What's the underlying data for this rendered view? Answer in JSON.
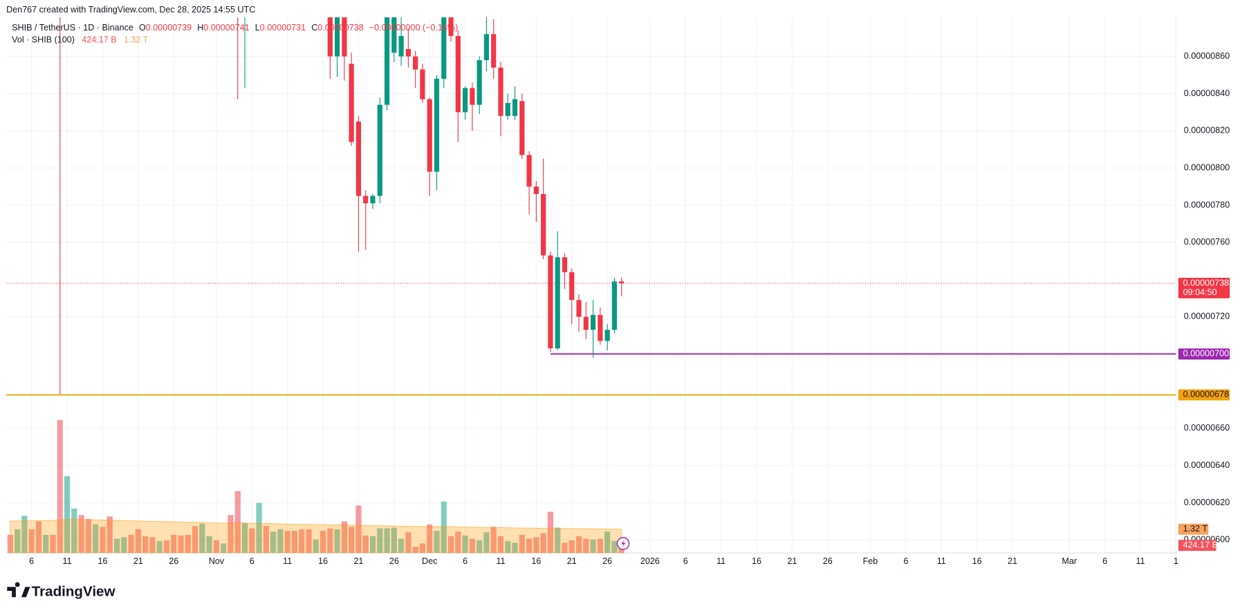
{
  "header": "Den767 created with TradingView.com, Dec 28, 2025 14:55 UTC",
  "brand": "TradingView",
  "legend": {
    "symbol": "SHIB / TetherUS · 1D · Binance",
    "ohlc": [
      {
        "key": "O",
        "value": "0.00000739"
      },
      {
        "key": "H",
        "value": "0.00000741"
      },
      {
        "key": "L",
        "value": "0.00000731"
      },
      {
        "key": "C",
        "value": "0.00000738"
      }
    ],
    "change": "−0.00000000 (−0.14%)",
    "volume": "Vol · SHIB (100)"
  },
  "chart_data": {
    "type": "candlestick",
    "xlim": [
      "2025-10-02",
      "2026-03-16"
    ],
    "xticks": [
      {
        "value": "2025-10-06",
        "label": "6"
      },
      {
        "value": "2025-10-11",
        "label": "11"
      },
      {
        "value": "2025-10-16",
        "label": "16"
      },
      {
        "value": "2025-10-21",
        "label": "21"
      },
      {
        "value": "2025-10-26",
        "label": "26"
      },
      {
        "value": "2025-11-01",
        "label": "Nov"
      },
      {
        "value": "2025-11-06",
        "label": "6"
      },
      {
        "value": "2025-11-11",
        "label": "11"
      },
      {
        "value": "2025-11-16",
        "label": "16"
      },
      {
        "value": "2025-11-21",
        "label": "21"
      },
      {
        "value": "2025-11-26",
        "label": "26"
      },
      {
        "value": "2025-12-01",
        "label": "Dec"
      },
      {
        "value": "2025-12-06",
        "label": "6"
      },
      {
        "value": "2025-12-11",
        "label": "11"
      },
      {
        "value": "2025-12-16",
        "label": "16"
      },
      {
        "value": "2025-12-21",
        "label": "21"
      },
      {
        "value": "2025-12-26",
        "label": "26"
      },
      {
        "value": "2026-01-01",
        "label": "2026"
      },
      {
        "value": "2026-01-06",
        "label": "6"
      },
      {
        "value": "2026-01-11",
        "label": "11"
      },
      {
        "value": "2026-01-16",
        "label": "16"
      },
      {
        "value": "2026-01-21",
        "label": "21"
      },
      {
        "value": "2026-01-26",
        "label": "26"
      },
      {
        "value": "2026-02-01",
        "label": "Feb"
      },
      {
        "value": "2026-02-06",
        "label": "6"
      },
      {
        "value": "2026-02-11",
        "label": "11"
      },
      {
        "value": "2026-02-16",
        "label": "16"
      },
      {
        "value": "2026-02-21",
        "label": "21"
      },
      {
        "value": "2026-03-01",
        "label": "Mar"
      },
      {
        "value": "2026-03-06",
        "label": "6"
      },
      {
        "value": "2026-03-11",
        "label": "11"
      },
      {
        "value": "2026-03-16",
        "label": "1"
      }
    ],
    "ylim": [
      5.93e-06,
      8.81e-06
    ],
    "yticks": [
      {
        "value": 6e-06,
        "label": "0.00000600"
      },
      {
        "value": 6.2e-06,
        "label": "0.00000620"
      },
      {
        "value": 6.4e-06,
        "label": "0.00000640"
      },
      {
        "value": 6.6e-06,
        "label": "0.00000660"
      },
      {
        "value": 7.2e-06,
        "label": "0.00000720"
      },
      {
        "value": 7.6e-06,
        "label": "0.00000760"
      },
      {
        "value": 7.8e-06,
        "label": "0.00000780"
      },
      {
        "value": 8e-06,
        "label": "0.00000800"
      },
      {
        "value": 8.2e-06,
        "label": "0.00000820"
      },
      {
        "value": 8.4e-06,
        "label": "0.00000840"
      },
      {
        "value": 8.6e-06,
        "label": "0.00000860"
      }
    ],
    "grid": true,
    "up_color": "#089981",
    "down_color": "#f23645",
    "candles": {
      "x": [
        "2025-11-04",
        "2025-11-05",
        "2025-11-17",
        "2025-11-18",
        "2025-11-19",
        "2025-11-20",
        "2025-11-21",
        "2025-11-22",
        "2025-11-23",
        "2025-11-24",
        "2025-11-25",
        "2025-11-26",
        "2025-11-27",
        "2025-11-28",
        "2025-11-29",
        "2025-11-30",
        "2025-12-01",
        "2025-12-02",
        "2025-12-03",
        "2025-12-04",
        "2025-12-05",
        "2025-12-06",
        "2025-12-07",
        "2025-12-08",
        "2025-12-09",
        "2025-12-10",
        "2025-12-11",
        "2025-12-12",
        "2025-12-13",
        "2025-12-14",
        "2025-12-15",
        "2025-12-16",
        "2025-12-17",
        "2025-12-18",
        "2025-12-19",
        "2025-12-20",
        "2025-12-21",
        "2025-12-22",
        "2025-12-23",
        "2025-12-24",
        "2025-12-25",
        "2025-12-26",
        "2025-12-27",
        "2025-12-28"
      ],
      "open": [
        8.9e-06,
        8.85e-06,
        8.9e-06,
        8.6e-06,
        8.9e-06,
        8.56e-06,
        8.25e-06,
        7.85e-06,
        7.81e-06,
        7.85e-06,
        8.34e-06,
        8.62e-06,
        8.6e-06,
        8.64e-06,
        8.6e-06,
        8.53e-06,
        8.37e-06,
        7.98e-06,
        8.48e-06,
        8.82e-06,
        8.71e-06,
        8.3e-06,
        8.43e-06,
        8.34e-06,
        8.58e-06,
        8.72e-06,
        8.54e-06,
        8.28e-06,
        8.28e-06,
        8.36e-06,
        8.07e-06,
        7.9e-06,
        7.86e-06,
        7.53e-06,
        7.03e-06,
        7.52e-06,
        7.44e-06,
        7.29e-06,
        7.2e-06,
        7.13e-06,
        7.21e-06,
        7.07e-06,
        7.13e-06,
        7.39e-06
      ],
      "high": [
        9e-06,
        9e-06,
        9e-06,
        9e-06,
        8.95e-06,
        8.62e-06,
        8.28e-06,
        7.88e-06,
        7.86e-06,
        8.38e-06,
        8.9e-06,
        8.9e-06,
        8.85e-06,
        8.75e-06,
        8.63e-06,
        8.56e-06,
        8.38e-06,
        8.5e-06,
        8.9e-06,
        8.85e-06,
        8.74e-06,
        8.44e-06,
        8.46e-06,
        8.6e-06,
        8.82e-06,
        8.8e-06,
        8.57e-06,
        8.4e-06,
        8.44e-06,
        8.4e-06,
        8.09e-06,
        7.93e-06,
        8.05e-06,
        7.55e-06,
        7.66e-06,
        7.54e-06,
        7.46e-06,
        7.32e-06,
        7.28e-06,
        7.29e-06,
        7.25e-06,
        7.16e-06,
        7.41e-06,
        7.41e-06
      ],
      "low": [
        8.37e-06,
        8.43e-06,
        8.48e-06,
        8.49e-06,
        8.47e-06,
        8.12e-06,
        7.55e-06,
        7.56e-06,
        7.78e-06,
        7.81e-06,
        8.31e-06,
        8.57e-06,
        8.55e-06,
        8.54e-06,
        8.43e-06,
        8.35e-06,
        7.85e-06,
        7.88e-06,
        8.43e-06,
        8.68e-06,
        8.14e-06,
        8.26e-06,
        8.2e-06,
        8.29e-06,
        8.52e-06,
        8.48e-06,
        8.17e-06,
        8.26e-06,
        8.26e-06,
        8.05e-06,
        7.75e-06,
        7.71e-06,
        7.51e-06,
        7.01e-06,
        7.02e-06,
        7.35e-06,
        7.16e-06,
        7.12e-06,
        7.08e-06,
        6.98e-06,
        7.05e-06,
        7.02e-06,
        7.11e-06,
        7.31e-06
      ],
      "close": [
        8.85e-06,
        8.95e-06,
        8.6e-06,
        8.9e-06,
        8.6e-06,
        8.14e-06,
        7.85e-06,
        7.81e-06,
        7.85e-06,
        8.34e-06,
        8.85e-06,
        8.82e-06,
        8.71e-06,
        8.6e-06,
        8.53e-06,
        8.37e-06,
        7.98e-06,
        8.48e-06,
        8.82e-06,
        8.71e-06,
        8.3e-06,
        8.43e-06,
        8.34e-06,
        8.58e-06,
        8.72e-06,
        8.54e-06,
        8.28e-06,
        8.35e-06,
        8.37e-06,
        8.07e-06,
        7.9e-06,
        7.86e-06,
        7.53e-06,
        7.03e-06,
        7.52e-06,
        7.44e-06,
        7.29e-06,
        7.2e-06,
        7.13e-06,
        7.21e-06,
        7.07e-06,
        7.13e-06,
        7.39e-06,
        7.38e-06
      ]
    },
    "volume": {
      "ylim": [
        0,
        29.8
      ],
      "ma_color": "#ff9800",
      "x": [
        "2025-10-03",
        "2025-10-04",
        "2025-10-05",
        "2025-10-06",
        "2025-10-07",
        "2025-10-08",
        "2025-10-09",
        "2025-10-10",
        "2025-10-11",
        "2025-10-12",
        "2025-10-13",
        "2025-10-14",
        "2025-10-15",
        "2025-10-16",
        "2025-10-17",
        "2025-10-18",
        "2025-10-19",
        "2025-10-20",
        "2025-10-21",
        "2025-10-22",
        "2025-10-23",
        "2025-10-24",
        "2025-10-25",
        "2025-10-26",
        "2025-10-27",
        "2025-10-28",
        "2025-10-29",
        "2025-10-30",
        "2025-10-31",
        "2025-11-01",
        "2025-11-02",
        "2025-11-03",
        "2025-11-04",
        "2025-11-05",
        "2025-11-06",
        "2025-11-07",
        "2025-11-08",
        "2025-11-09",
        "2025-11-10",
        "2025-11-11",
        "2025-11-12",
        "2025-11-13",
        "2025-11-14",
        "2025-11-15",
        "2025-11-16",
        "2025-11-17",
        "2025-11-18",
        "2025-11-19",
        "2025-11-20",
        "2025-11-21",
        "2025-11-22",
        "2025-11-23",
        "2025-11-24",
        "2025-11-25",
        "2025-11-26",
        "2025-11-27",
        "2025-11-28",
        "2025-11-29",
        "2025-11-30",
        "2025-12-01",
        "2025-12-02",
        "2025-12-03",
        "2025-12-04",
        "2025-12-05",
        "2025-12-06",
        "2025-12-07",
        "2025-12-08",
        "2025-12-09",
        "2025-12-10",
        "2025-12-11",
        "2025-12-12",
        "2025-12-13",
        "2025-12-14",
        "2025-12-15",
        "2025-12-16",
        "2025-12-17",
        "2025-12-18",
        "2025-12-19",
        "2025-12-20",
        "2025-12-21",
        "2025-12-22",
        "2025-12-23",
        "2025-12-24",
        "2025-12-25",
        "2025-12-26",
        "2025-12-27",
        "2025-12-28"
      ],
      "values": [
        1.01,
        1.32,
        2.07,
        1.32,
        1.76,
        1.01,
        1.01,
        7.4,
        4.27,
        2.47,
        2.11,
        1.89,
        1.59,
        1.45,
        2.03,
        0.79,
        0.88,
        1.01,
        1.32,
        0.93,
        0.88,
        0.66,
        0.7,
        1.01,
        0.97,
        1.01,
        1.5,
        1.63,
        0.93,
        0.7,
        0.53,
        2.11,
        3.44,
        1.67,
        1.37,
        2.78,
        1.5,
        1.19,
        1.32,
        1.23,
        1.23,
        1.32,
        1.32,
        0.75,
        1.23,
        1.37,
        1.32,
        1.76,
        1.45,
        2.64,
        0.97,
        0.93,
        1.37,
        1.37,
        1.41,
        0.79,
        1.15,
        0.35,
        0.53,
        1.59,
        1.23,
        2.86,
        0.93,
        1.19,
        0.97,
        0.79,
        0.7,
        1.15,
        1.45,
        0.93,
        0.66,
        0.57,
        1.01,
        0.79,
        0.88,
        1.1,
        2.29,
        1.41,
        0.57,
        0.7,
        0.93,
        0.79,
        0.75,
        0.79,
        1.19,
        0.66,
        0.42417
      ],
      "colors": [
        "#f23645",
        "#089981",
        "#089981",
        "#f23645",
        "#f23645",
        "#089981",
        "#f23645",
        "#f23645",
        "#089981",
        "#089981",
        "#f23645",
        "#f23645",
        "#089981",
        "#f23645",
        "#f23645",
        "#089981",
        "#089981",
        "#f23645",
        "#f23645",
        "#f23645",
        "#f23645",
        "#089981",
        "#f23645",
        "#f23645",
        "#f23645",
        "#f23645",
        "#f23645",
        "#089981",
        "#089981",
        "#f23645",
        "#089981",
        "#f23645",
        "#f23645",
        "#089981",
        "#f23645",
        "#089981",
        "#f23645",
        "#089981",
        "#089981",
        "#f23645",
        "#f23645",
        "#f23645",
        "#f23645",
        "#089981",
        "#f23645",
        "#f23645",
        "#089981",
        "#f23645",
        "#f23645",
        "#f23645",
        "#f23645",
        "#089981",
        "#089981",
        "#089981",
        "#089981",
        "#089981",
        "#f23645",
        "#f23645",
        "#f23645",
        "#f23645",
        "#089981",
        "#089981",
        "#f23645",
        "#f23645",
        "#089981",
        "#f23645",
        "#089981",
        "#089981",
        "#f23645",
        "#f23645",
        "#089981",
        "#089981",
        "#f23645",
        "#f23645",
        "#f23645",
        "#f23645",
        "#f23645",
        "#089981",
        "#f23645",
        "#f23645",
        "#f23645",
        "#f23645",
        "#089981",
        "#f23645",
        "#089981",
        "#089981",
        "#f23645"
      ],
      "ma": [
        1.78,
        1.78,
        1.79,
        1.79,
        1.8,
        1.8,
        1.81,
        1.85,
        1.86,
        1.86,
        1.85,
        1.85,
        1.84,
        1.83,
        1.82,
        1.81,
        1.8,
        1.79,
        1.78,
        1.77,
        1.76,
        1.75,
        1.74,
        1.73,
        1.72,
        1.71,
        1.7,
        1.69,
        1.68,
        1.67,
        1.66,
        1.66,
        1.67,
        1.66,
        1.65,
        1.65,
        1.64,
        1.63,
        1.62,
        1.61,
        1.6,
        1.6,
        1.59,
        1.58,
        1.57,
        1.56,
        1.56,
        1.55,
        1.54,
        1.54,
        1.53,
        1.52,
        1.52,
        1.51,
        1.5,
        1.49,
        1.48,
        1.48,
        1.47,
        1.46,
        1.46,
        1.47,
        1.46,
        1.45,
        1.44,
        1.43,
        1.43,
        1.42,
        1.41,
        1.41,
        1.4,
        1.39,
        1.38,
        1.38,
        1.37,
        1.37,
        1.38,
        1.37,
        1.36,
        1.36,
        1.35,
        1.35,
        1.34,
        1.34,
        1.33,
        1.33,
        1.32
      ],
      "labels": [
        {
          "value": 1.32,
          "label": "1.32 T",
          "color": "#f7a35c"
        },
        {
          "value": 0.42417,
          "label": "424.17 B",
          "color": "#f7525f"
        }
      ]
    },
    "price_lines": [
      {
        "value": 7.38e-06,
        "label": "0.00000738",
        "countdown": "09:04:50",
        "color": "#f23645",
        "style": "dotted"
      },
      {
        "value": 7e-06,
        "label": "0.00000700",
        "color": "#9c27b0",
        "style": "solid",
        "from": "2025-12-18"
      },
      {
        "value": 6.78e-06,
        "label": "0.00000678",
        "color": "#f5a10d",
        "style": "solid"
      }
    ],
    "vline": {
      "x": "2025-10-10",
      "to": 6.78e-06,
      "color": "#f23645"
    }
  }
}
